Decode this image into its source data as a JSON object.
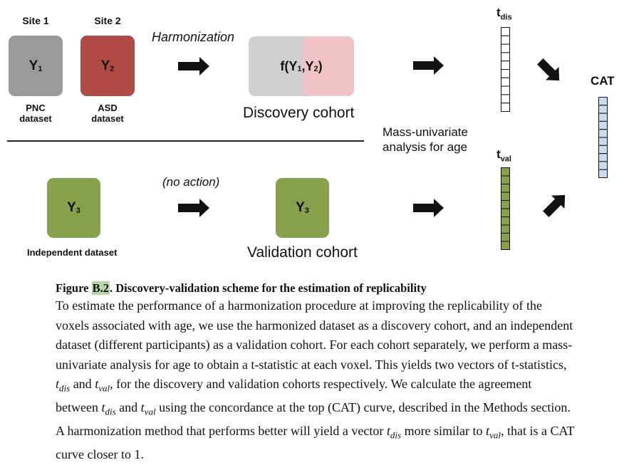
{
  "figure": {
    "site1_label": "Site 1",
    "site2_label": "Site 2",
    "y1": "Y",
    "y1_sub": "1",
    "y2": "Y",
    "y2_sub": "2",
    "pnc_line1": "PNC",
    "pnc_line2": "dataset",
    "asd_line1": "ASD",
    "asd_line2": "dataset",
    "harmonization_label": "Harmonization",
    "harmonized_text": "f(Y",
    "harmonized_sub1": "1",
    "harmonized_comma": ",Y",
    "harmonized_sub2": "2",
    "harmonized_close": ")",
    "discovery_cohort": "Discovery cohort",
    "mass_univariate_line1": "Mass-univariate",
    "mass_univariate_line2": "analysis for age",
    "t_dis": "t",
    "t_dis_sub": "dis",
    "t_val": "t",
    "t_val_sub": "val",
    "cat_label": "CAT",
    "no_action_label": "(no action)",
    "y3": "Y",
    "y3_sub": "3",
    "y3b": "Y",
    "y3b_sub": "3",
    "independent_dataset": "Independent dataset",
    "validation_cohort": "Validation cohort",
    "colors": {
      "site1_box": "#9a9a9a",
      "site2_box": "#b04a44",
      "harmonized_left": "#cfcfcf",
      "harmonized_right": "#f0c4c4",
      "green_box": "#86a04c",
      "cat_vector": "#c9dbee"
    }
  },
  "caption": {
    "figure_word": "Figure ",
    "figure_number": "B.2",
    "title_rest": ". Discovery-validation scheme for the estimation of replicability",
    "body_part1": "To estimate the performance of a harmonization procedure at improving the replicability of the voxels associated with age, we use the harmonized dataset as a discovery cohort, and an independent dataset (different participants) as a validation cohort. For each cohort separately, we perform a mass-univariate analysis for age to obtain a t-statistic at each voxel. This yields two vectors of t-statistics, ",
    "tdis_1": "t",
    "tdis_1_sub": "dis",
    "and_1": " and ",
    "tval_1": "t",
    "tval_1_sub": "val",
    "body_part2": ", for the discovery and validation cohorts respectively. We calculate the agreement between ",
    "tdis_2": "t",
    "tdis_2_sub": "dis",
    "and_2": " and ",
    "tval_2": "t",
    "tval_2_sub": "val",
    "body_part3": " using the concordance at the top (CAT) curve, described in the Methods section. A harmonization method that performs better will yield a vector ",
    "tdis_3": "t",
    "tdis_3_sub": "dis",
    "body_part4": " more similar to ",
    "tval_3": "t",
    "tval_3_sub": "val",
    "body_part5": ", that is a CAT curve closer to 1."
  }
}
